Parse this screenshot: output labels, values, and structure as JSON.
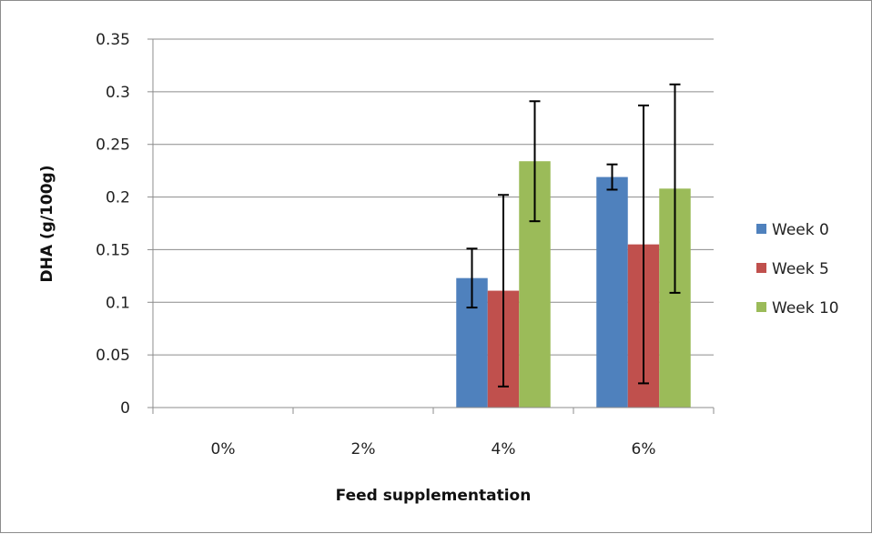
{
  "chart_data": {
    "type": "bar",
    "categories": [
      "0%",
      "2%",
      "4%",
      "6%"
    ],
    "series": [
      {
        "name": "Week 0",
        "color": "#4F81BD",
        "values": [
          null,
          null,
          0.123,
          0.219
        ],
        "error": [
          null,
          null,
          0.028,
          0.012
        ]
      },
      {
        "name": "Week 5",
        "color": "#C0504D",
        "values": [
          null,
          null,
          0.111,
          0.155
        ],
        "error": [
          null,
          null,
          0.091,
          0.132
        ]
      },
      {
        "name": "Week 10",
        "color": "#9BBB59",
        "values": [
          null,
          null,
          0.234,
          0.208
        ],
        "error": [
          null,
          null,
          0.057,
          0.099
        ]
      }
    ],
    "yticks": [
      "0",
      "0.05",
      "0.1",
      "0.15",
      "0.2",
      "0.25",
      "0.3",
      "0.35"
    ],
    "ylim": [
      0,
      0.35
    ],
    "xlabel": "Feed supplementation",
    "ylabel": "DHA  (g/100g)",
    "grid": true,
    "legend_position": "right"
  }
}
